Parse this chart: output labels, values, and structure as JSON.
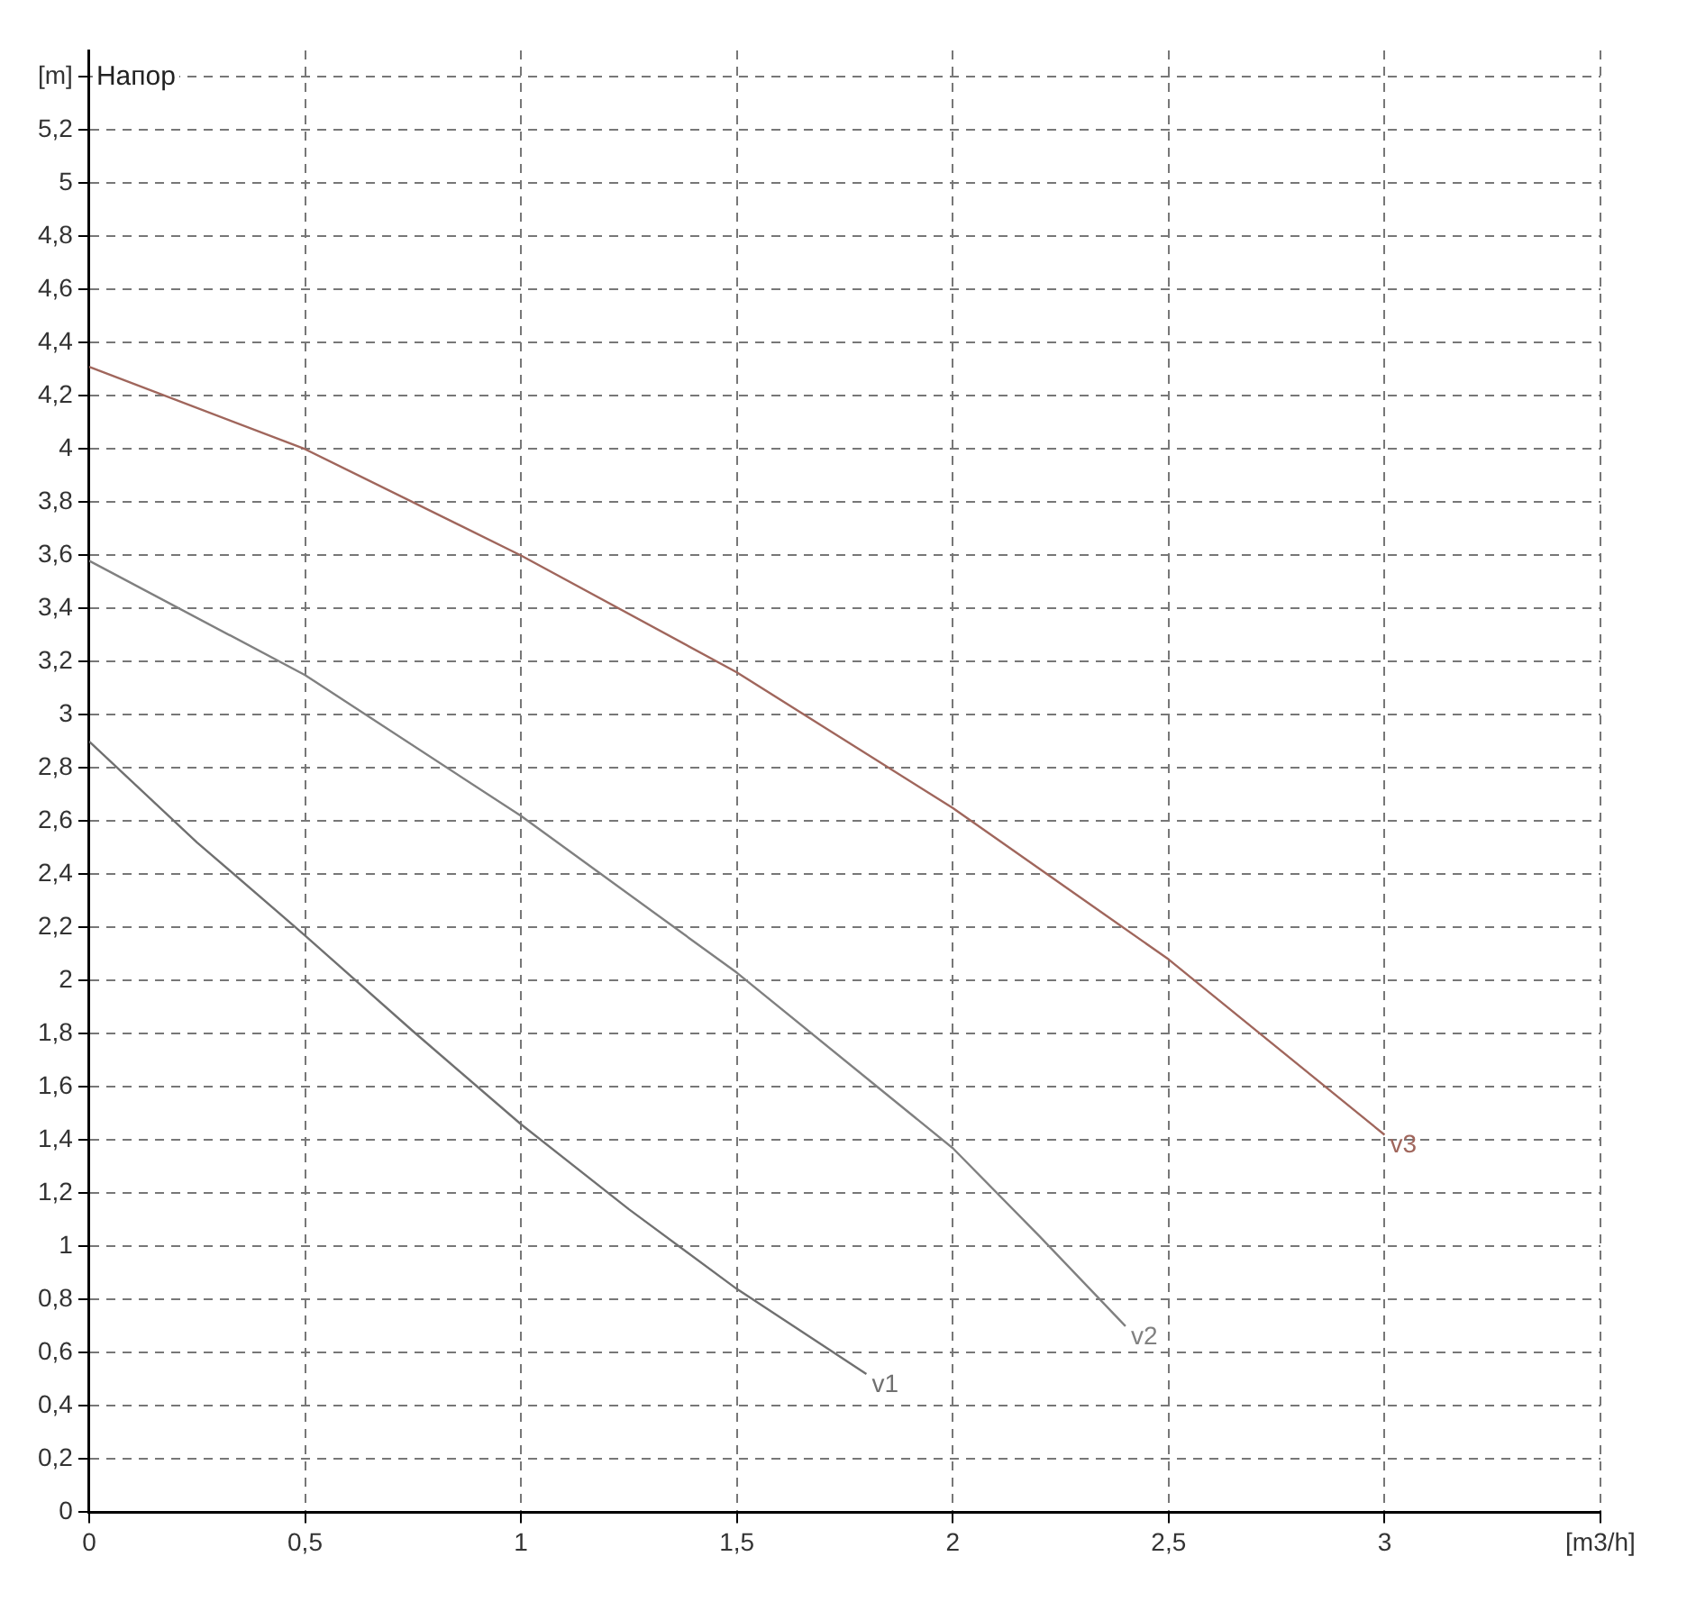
{
  "chart_data": {
    "type": "line",
    "title": "Напор",
    "xlim": [
      0,
      3.5
    ],
    "ylim": [
      0,
      5.5
    ],
    "xticks": [
      0,
      {
        "value": 0.5,
        "label": "0,5"
      },
      1,
      {
        "value": 1.5,
        "label": "1,5"
      },
      2,
      {
        "value": 2.5,
        "label": "2,5"
      },
      3,
      {
        "value": 3.5,
        "label": "[m3/h]"
      }
    ],
    "yticks": [
      0,
      {
        "value": 0.2,
        "label": "0,2"
      },
      {
        "value": 0.4,
        "label": "0,4"
      },
      {
        "value": 0.6,
        "label": "0,6"
      },
      {
        "value": 0.8,
        "label": "0,8"
      },
      1,
      {
        "value": 1.2,
        "label": "1,2"
      },
      {
        "value": 1.4,
        "label": "1,4"
      },
      {
        "value": 1.6,
        "label": "1,6"
      },
      {
        "value": 1.8,
        "label": "1,8"
      },
      2,
      {
        "value": 2.2,
        "label": "2,2"
      },
      {
        "value": 2.4,
        "label": "2,4"
      },
      {
        "value": 2.6,
        "label": "2,6"
      },
      {
        "value": 2.8,
        "label": "2,8"
      },
      3,
      {
        "value": 3.2,
        "label": "3,2"
      },
      {
        "value": 3.4,
        "label": "3,4"
      },
      {
        "value": 3.6,
        "label": "3,6"
      },
      {
        "value": 3.8,
        "label": "3,8"
      },
      4,
      {
        "value": 4.2,
        "label": "4,2"
      },
      {
        "value": 4.4,
        "label": "4,4"
      },
      {
        "value": 4.6,
        "label": "4,6"
      },
      {
        "value": 4.8,
        "label": "4,8"
      },
      5,
      {
        "value": 5.2,
        "label": "5,2"
      },
      {
        "value": 5.4,
        "label": "[m]"
      }
    ],
    "grid": true,
    "legend": false,
    "marker": "none",
    "line_style": "solid",
    "series": [
      {
        "name": "v1",
        "color": "#707070",
        "x": [
          0,
          0.25,
          0.5,
          0.75,
          1,
          1.25,
          1.5,
          1.8
        ],
        "values": [
          2.9,
          2.52,
          2.17,
          1.81,
          1.46,
          1.14,
          0.84,
          0.52
        ]
      },
      {
        "name": "v2",
        "color": "#808080",
        "x": [
          0,
          0.5,
          1,
          1.5,
          2,
          2.2,
          2.4
        ],
        "values": [
          3.58,
          3.15,
          2.62,
          2.03,
          1.37,
          1.04,
          0.7
        ]
      },
      {
        "name": "v3",
        "color": "#a0665c",
        "x": [
          0,
          0.5,
          1,
          1.5,
          2,
          2.5,
          3
        ],
        "values": [
          4.31,
          4.0,
          3.6,
          3.16,
          2.65,
          2.08,
          1.42
        ]
      }
    ]
  }
}
